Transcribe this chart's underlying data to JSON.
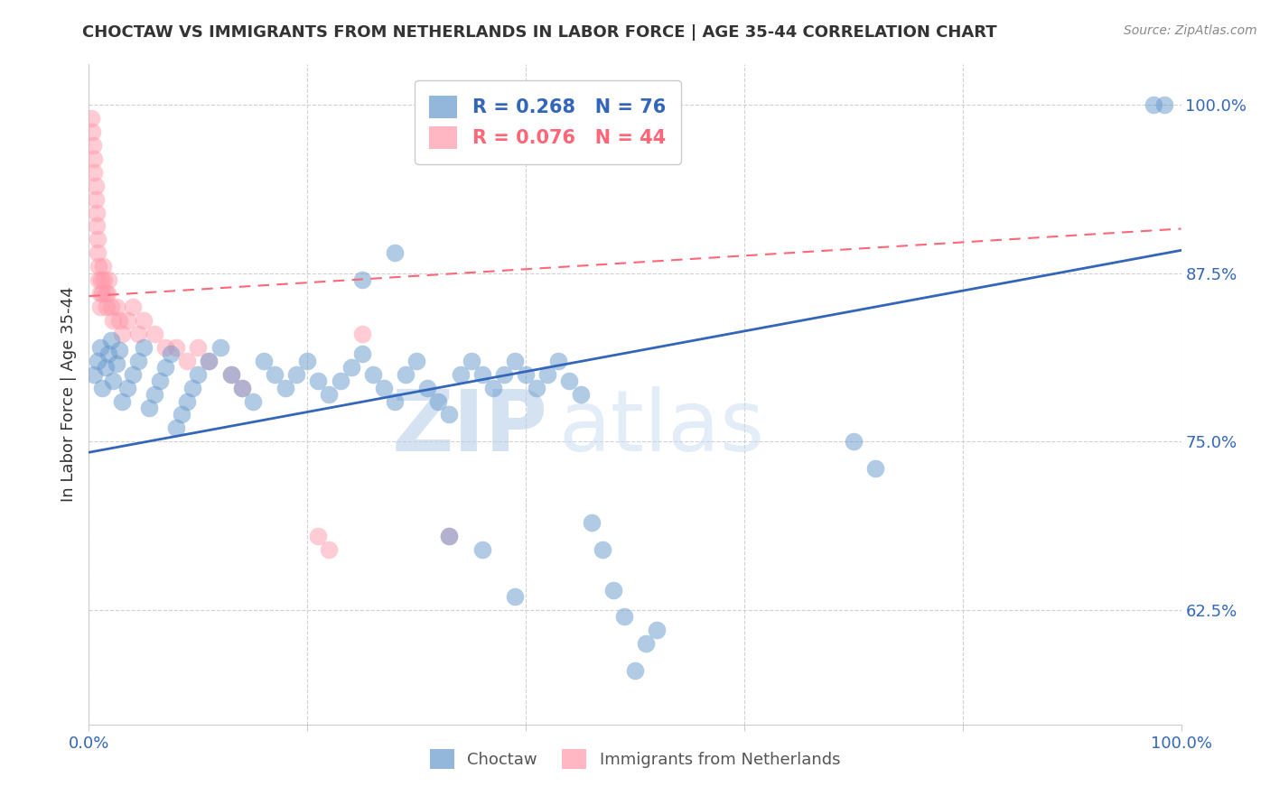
{
  "title": "CHOCTAW VS IMMIGRANTS FROM NETHERLANDS IN LABOR FORCE | AGE 35-44 CORRELATION CHART",
  "source": "Source: ZipAtlas.com",
  "ylabel": "In Labor Force | Age 35-44",
  "xlim": [
    0.0,
    1.0
  ],
  "ylim": [
    0.54,
    1.03
  ],
  "yticks": [
    0.625,
    0.75,
    0.875,
    1.0
  ],
  "ytick_labels": [
    "62.5%",
    "75.0%",
    "87.5%",
    "100.0%"
  ],
  "xticks": [
    0.0,
    0.2,
    0.4,
    0.6,
    0.8,
    1.0
  ],
  "xtick_labels": [
    "0.0%",
    "",
    "",
    "",
    "",
    "100.0%"
  ],
  "blue_R": 0.268,
  "blue_N": 76,
  "pink_R": 0.076,
  "pink_N": 44,
  "blue_label": "Choctaw",
  "pink_label": "Immigrants from Netherlands",
  "blue_color": "#6699CC",
  "pink_color": "#FF99AA",
  "blue_line_color": "#3366BB",
  "pink_line_color": "#FF6677",
  "watermark_zip": "ZIP",
  "watermark_atlas": "atlas",
  "blue_scatter_x": [
    0.005,
    0.008,
    0.01,
    0.012,
    0.015,
    0.018,
    0.02,
    0.022,
    0.025,
    0.028,
    0.03,
    0.035,
    0.04,
    0.045,
    0.05,
    0.055,
    0.06,
    0.065,
    0.07,
    0.075,
    0.08,
    0.085,
    0.09,
    0.095,
    0.1,
    0.11,
    0.12,
    0.13,
    0.14,
    0.15,
    0.16,
    0.17,
    0.18,
    0.19,
    0.2,
    0.21,
    0.22,
    0.23,
    0.24,
    0.25,
    0.26,
    0.27,
    0.28,
    0.29,
    0.3,
    0.31,
    0.32,
    0.33,
    0.34,
    0.35,
    0.36,
    0.37,
    0.38,
    0.39,
    0.4,
    0.41,
    0.42,
    0.43,
    0.44,
    0.45,
    0.46,
    0.47,
    0.48,
    0.49,
    0.5,
    0.51,
    0.52,
    0.33,
    0.36,
    0.39,
    0.7,
    0.72,
    0.975,
    0.985,
    0.25,
    0.28
  ],
  "blue_scatter_y": [
    0.8,
    0.81,
    0.82,
    0.79,
    0.805,
    0.815,
    0.825,
    0.795,
    0.808,
    0.818,
    0.78,
    0.79,
    0.8,
    0.81,
    0.82,
    0.775,
    0.785,
    0.795,
    0.805,
    0.815,
    0.76,
    0.77,
    0.78,
    0.79,
    0.8,
    0.81,
    0.82,
    0.8,
    0.79,
    0.78,
    0.81,
    0.8,
    0.79,
    0.8,
    0.81,
    0.795,
    0.785,
    0.795,
    0.805,
    0.815,
    0.8,
    0.79,
    0.78,
    0.8,
    0.81,
    0.79,
    0.78,
    0.77,
    0.8,
    0.81,
    0.8,
    0.79,
    0.8,
    0.81,
    0.8,
    0.79,
    0.8,
    0.81,
    0.795,
    0.785,
    0.69,
    0.67,
    0.64,
    0.62,
    0.58,
    0.6,
    0.61,
    0.68,
    0.67,
    0.635,
    0.75,
    0.73,
    1.0,
    1.0,
    0.87,
    0.89
  ],
  "pink_scatter_x": [
    0.002,
    0.003,
    0.004,
    0.005,
    0.005,
    0.006,
    0.006,
    0.007,
    0.007,
    0.008,
    0.008,
    0.009,
    0.009,
    0.01,
    0.01,
    0.011,
    0.012,
    0.013,
    0.014,
    0.015,
    0.016,
    0.017,
    0.018,
    0.02,
    0.022,
    0.025,
    0.028,
    0.03,
    0.035,
    0.04,
    0.045,
    0.05,
    0.06,
    0.07,
    0.08,
    0.09,
    0.1,
    0.11,
    0.13,
    0.14,
    0.21,
    0.22,
    0.25,
    0.33
  ],
  "pink_scatter_y": [
    0.99,
    0.98,
    0.97,
    0.96,
    0.95,
    0.94,
    0.93,
    0.92,
    0.91,
    0.9,
    0.89,
    0.88,
    0.87,
    0.86,
    0.85,
    0.87,
    0.86,
    0.88,
    0.87,
    0.86,
    0.85,
    0.86,
    0.87,
    0.85,
    0.84,
    0.85,
    0.84,
    0.83,
    0.84,
    0.85,
    0.83,
    0.84,
    0.83,
    0.82,
    0.82,
    0.81,
    0.82,
    0.81,
    0.8,
    0.79,
    0.68,
    0.67,
    0.83,
    0.68
  ],
  "blue_line_x": [
    0.0,
    1.0
  ],
  "blue_line_y": [
    0.742,
    0.892
  ],
  "pink_line_x": [
    0.0,
    1.0
  ],
  "pink_line_y": [
    0.858,
    0.908
  ]
}
